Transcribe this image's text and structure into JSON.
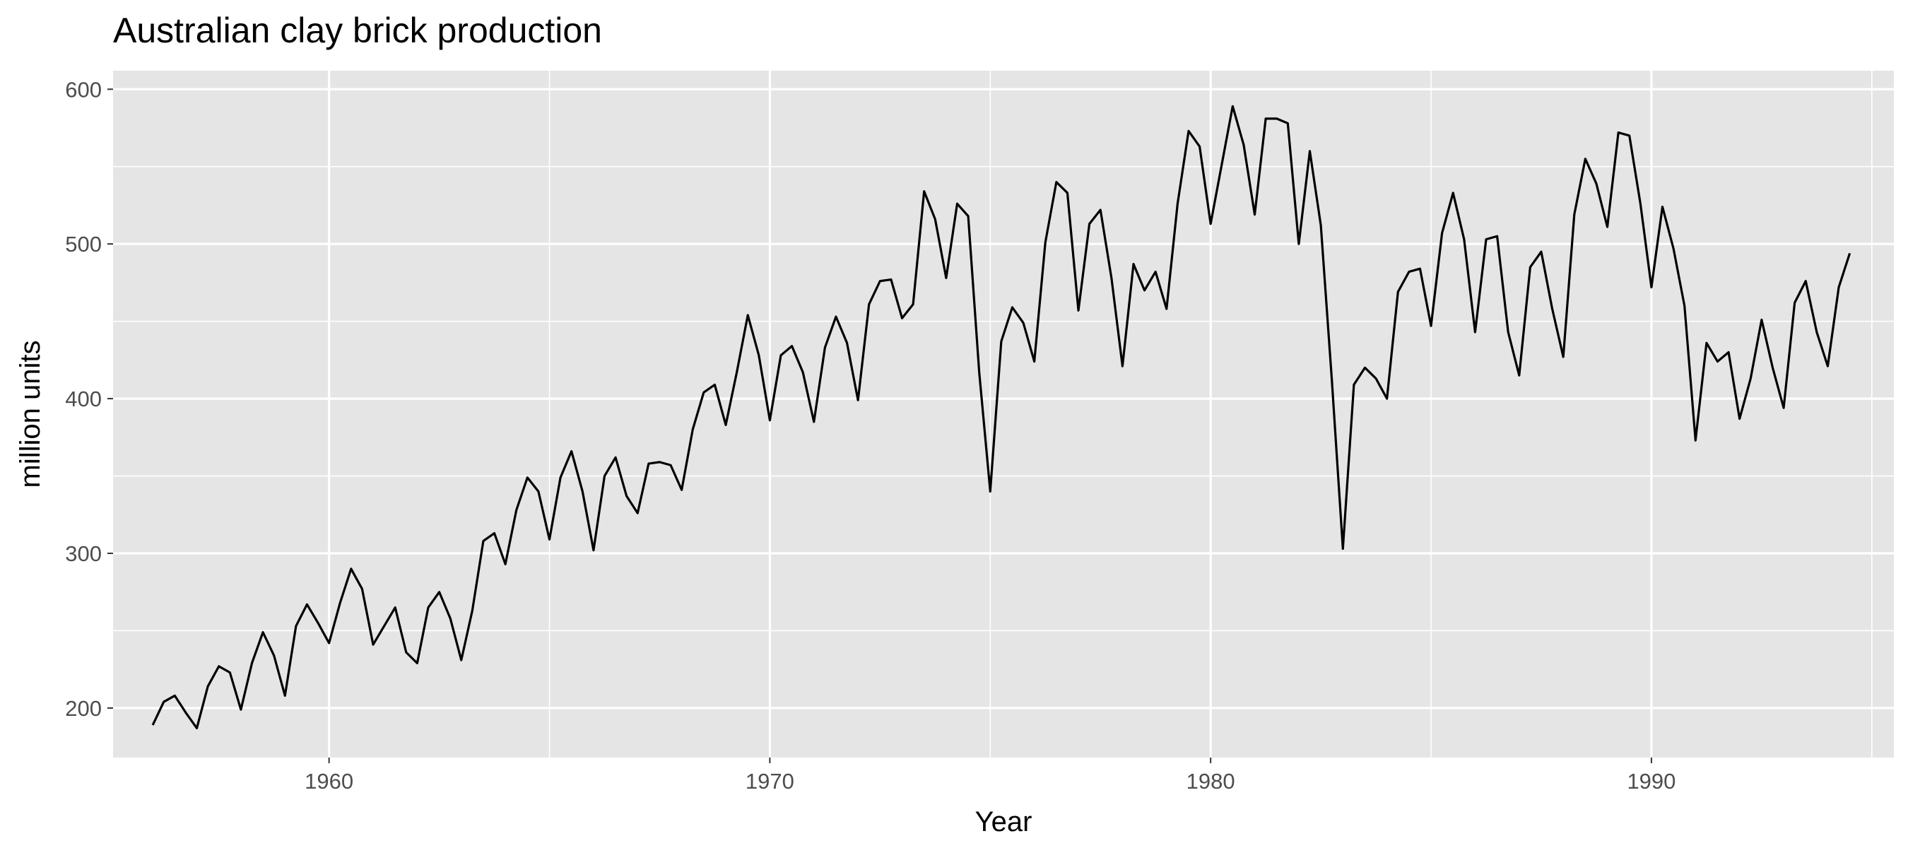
{
  "chart_data": {
    "type": "line",
    "title": "Australian clay brick production",
    "xlabel": "Year",
    "ylabel": "million units",
    "xlim": [
      1955.1,
      1995.5
    ],
    "ylim": [
      168,
      612
    ],
    "x_ticks": [
      1960,
      1970,
      1980,
      1990
    ],
    "x_tick_labels": [
      "1960",
      "1970",
      "1980",
      "1990"
    ],
    "y_ticks": [
      200,
      300,
      400,
      500,
      600
    ],
    "y_tick_labels": [
      "200",
      "300",
      "400",
      "500",
      "600"
    ],
    "grid": true,
    "legend": "none",
    "start": 1956.0,
    "frequency": "quarterly",
    "series": [
      {
        "values": [
          189,
          204,
          208,
          197,
          187,
          214,
          227,
          223,
          199,
          229,
          249,
          234,
          208,
          253,
          267,
          255,
          242,
          268,
          290,
          277,
          241,
          253,
          265,
          236,
          229,
          265,
          275,
          258,
          231,
          263,
          308,
          313,
          293,
          328,
          349,
          340,
          309,
          349,
          366,
          340,
          302,
          350,
          362,
          337,
          326,
          358,
          359,
          357,
          341,
          380,
          404,
          409,
          383,
          417,
          454,
          428,
          386,
          428,
          434,
          417,
          385,
          433,
          453,
          436,
          399,
          461,
          476,
          477,
          452,
          461,
          534,
          516,
          478,
          526,
          518,
          417,
          340,
          437,
          459,
          449,
          424,
          501,
          540,
          533,
          457,
          513,
          522,
          478,
          421,
          487,
          470,
          482,
          458,
          526,
          573,
          563,
          513,
          551,
          589,
          564,
          519,
          581,
          581,
          578,
          500,
          560,
          512,
          412,
          303,
          409,
          420,
          413,
          400,
          469,
          482,
          484,
          447,
          507,
          533,
          503,
          443,
          503,
          505,
          443,
          415,
          485,
          495,
          458,
          427,
          519,
          555,
          539,
          511,
          572,
          570,
          526,
          472,
          524,
          497,
          460,
          373,
          436,
          424,
          430,
          387,
          413,
          451,
          420,
          394,
          462,
          476,
          443,
          421,
          472,
          494
        ]
      }
    ],
    "colors": {
      "panel_background": "#e5e5e5",
      "grid_major": "#ffffff",
      "line": "#000000"
    }
  }
}
